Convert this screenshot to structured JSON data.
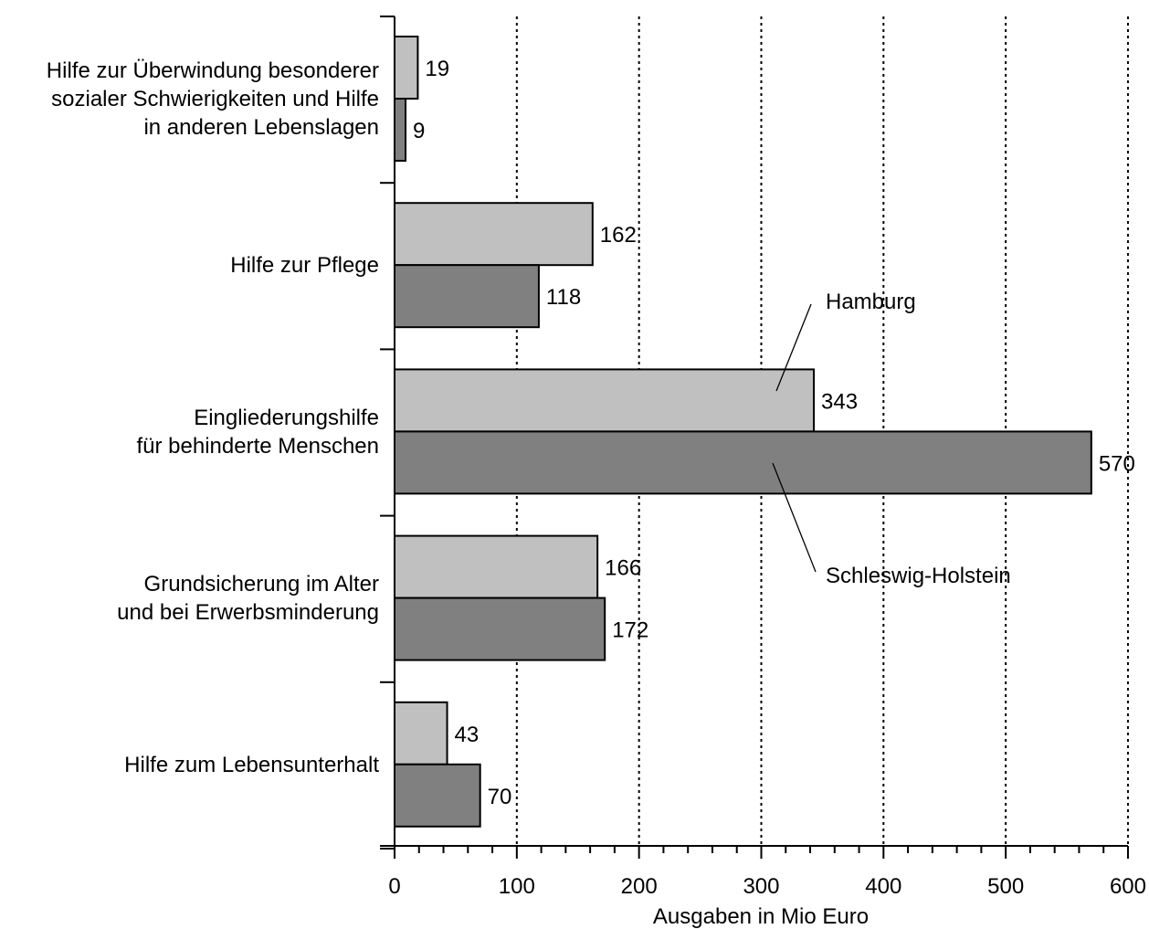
{
  "chart_data": {
    "type": "bar",
    "orientation": "horizontal",
    "categories": [
      [
        "Hilfe zur Überwindung besonderer",
        "sozialer Schwierigkeiten und Hilfe",
        "in anderen Lebenslagen"
      ],
      [
        "Hilfe zur Pflege"
      ],
      [
        "Eingliederungshilfe",
        "für behinderte Menschen"
      ],
      [
        "Grundsicherung im Alter",
        "und bei Erwerbsminderung"
      ],
      [
        "Hilfe zum Lebensunterhalt"
      ]
    ],
    "series": [
      {
        "name": "Hamburg",
        "color": "#c0c0c0",
        "values": [
          19,
          162,
          343,
          166,
          43
        ]
      },
      {
        "name": "Schleswig-Holstein",
        "color": "#808080",
        "values": [
          9,
          118,
          570,
          172,
          70
        ]
      }
    ],
    "xlabel": "Ausgaben in Mio Euro",
    "xlim": [
      0,
      600
    ],
    "x_ticks": [
      0,
      100,
      200,
      300,
      400,
      500,
      600
    ],
    "tick_labels": [
      "0",
      "100",
      "200",
      "300",
      "400",
      "500",
      "600"
    ],
    "grid": "vertical dotted"
  }
}
